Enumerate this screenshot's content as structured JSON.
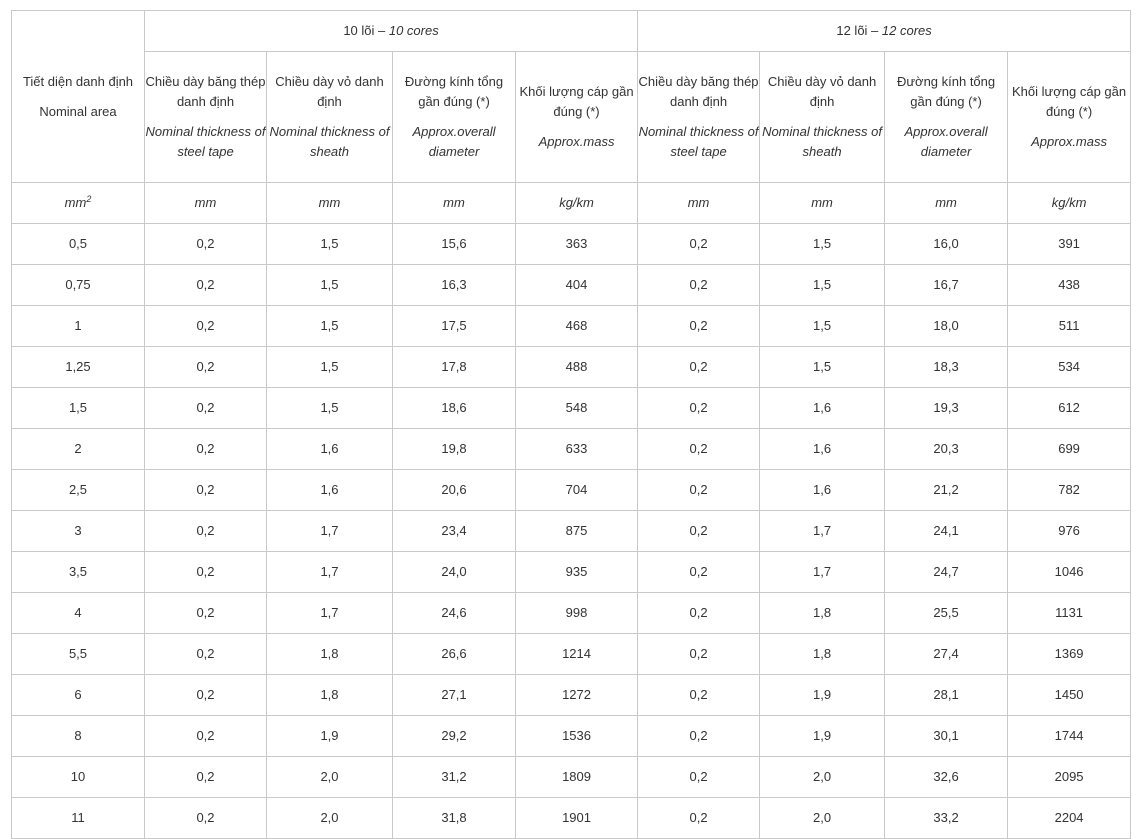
{
  "header": {
    "first_col_vn": "Tiết diện danh định",
    "first_col_en": "Nominal area",
    "group10_vn": "10 lõi – ",
    "group10_en": "10 cores",
    "group12_vn": "12 lõi – ",
    "group12_en": "12 cores",
    "columns": [
      {
        "vn": "Chiều dày băng thép danh định",
        "en": "Nominal thickness of steel tape"
      },
      {
        "vn": "Chiều dày vỏ danh định",
        "en": "Nominal thickness of sheath"
      },
      {
        "vn": "Đường kính tổng gần đúng (*)",
        "en": "Approx.overall diameter"
      },
      {
        "vn": "Khối lượng cáp gần đúng (*)",
        "en": "Approx.mass"
      },
      {
        "vn": "Chiều dày băng thép danh định",
        "en": "Nominal thickness of steel tape"
      },
      {
        "vn": "Chiều dày vỏ danh định",
        "en": "Nominal thickness of sheath"
      },
      {
        "vn": "Đường kính tổng gần đúng (*)",
        "en": "Approx.overall diameter"
      },
      {
        "vn": "Khối lượng cáp gần đúng (*)",
        "en": "Approx.mass"
      }
    ]
  },
  "units": {
    "area_base": "mm",
    "area_exp": "2",
    "cols": [
      "mm",
      "mm",
      "mm",
      "kg/km",
      "mm",
      "mm",
      "mm",
      "kg/km"
    ]
  },
  "rows": [
    [
      "0,5",
      "0,2",
      "1,5",
      "15,6",
      "363",
      "0,2",
      "1,5",
      "16,0",
      "391"
    ],
    [
      "0,75",
      "0,2",
      "1,5",
      "16,3",
      "404",
      "0,2",
      "1,5",
      "16,7",
      "438"
    ],
    [
      "1",
      "0,2",
      "1,5",
      "17,5",
      "468",
      "0,2",
      "1,5",
      "18,0",
      "511"
    ],
    [
      "1,25",
      "0,2",
      "1,5",
      "17,8",
      "488",
      "0,2",
      "1,5",
      "18,3",
      "534"
    ],
    [
      "1,5",
      "0,2",
      "1,5",
      "18,6",
      "548",
      "0,2",
      "1,6",
      "19,3",
      "612"
    ],
    [
      "2",
      "0,2",
      "1,6",
      "19,8",
      "633",
      "0,2",
      "1,6",
      "20,3",
      "699"
    ],
    [
      "2,5",
      "0,2",
      "1,6",
      "20,6",
      "704",
      "0,2",
      "1,6",
      "21,2",
      "782"
    ],
    [
      "3",
      "0,2",
      "1,7",
      "23,4",
      "875",
      "0,2",
      "1,7",
      "24,1",
      "976"
    ],
    [
      "3,5",
      "0,2",
      "1,7",
      "24,0",
      "935",
      "0,2",
      "1,7",
      "24,7",
      "1046"
    ],
    [
      "4",
      "0,2",
      "1,7",
      "24,6",
      "998",
      "0,2",
      "1,8",
      "25,5",
      "1131"
    ],
    [
      "5,5",
      "0,2",
      "1,8",
      "26,6",
      "1214",
      "0,2",
      "1,8",
      "27,4",
      "1369"
    ],
    [
      "6",
      "0,2",
      "1,8",
      "27,1",
      "1272",
      "0,2",
      "1,9",
      "28,1",
      "1450"
    ],
    [
      "8",
      "0,2",
      "1,9",
      "29,2",
      "1536",
      "0,2",
      "1,9",
      "30,1",
      "1744"
    ],
    [
      "10",
      "0,2",
      "2,0",
      "31,2",
      "1809",
      "0,2",
      "2,0",
      "32,6",
      "2095"
    ],
    [
      "11",
      "0,2",
      "2,0",
      "31,8",
      "1901",
      "0,2",
      "2,0",
      "33,2",
      "2204"
    ]
  ]
}
